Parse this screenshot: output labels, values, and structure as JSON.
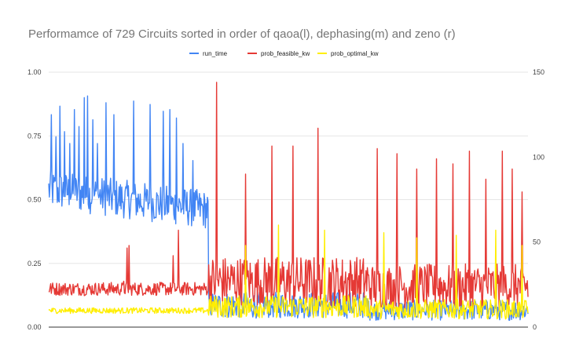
{
  "chart_data": {
    "type": "line",
    "title": "Performamce of 729 Circuits sorted in order of qaoa(l), dephasing(m) and zeno (r)",
    "xlabel": "",
    "ylabel": "",
    "n_points": 729,
    "left_axis": {
      "ylim": [
        0,
        1
      ],
      "ticks": [
        "0.00",
        "0.25",
        "0.50",
        "0.75",
        "1.00"
      ]
    },
    "right_axis": {
      "ylim": [
        0,
        150
      ],
      "ticks": [
        "0",
        "50",
        "100",
        "150"
      ]
    },
    "grid": true,
    "legend_position": "top-center",
    "series": [
      {
        "name": "run_time",
        "color": "#4285f4",
        "axis": "right",
        "segments": [
          {
            "x_range": [
              1,
              243
            ],
            "level": 81,
            "peaks": [
              {
                "x": 5,
                "y": 125
              },
              {
                "x": 12,
                "y": 112
              },
              {
                "x": 18,
                "y": 130
              },
              {
                "x": 25,
                "y": 115
              },
              {
                "x": 33,
                "y": 108
              },
              {
                "x": 40,
                "y": 128
              },
              {
                "x": 47,
                "y": 118
              },
              {
                "x": 55,
                "y": 135
              },
              {
                "x": 60,
                "y": 136
              },
              {
                "x": 68,
                "y": 122
              },
              {
                "x": 75,
                "y": 108
              },
              {
                "x": 88,
                "y": 132
              },
              {
                "x": 100,
                "y": 125
              },
              {
                "x": 130,
                "y": 133
              },
              {
                "x": 155,
                "y": 131
              },
              {
                "x": 175,
                "y": 127
              },
              {
                "x": 185,
                "y": 128
              },
              {
                "x": 195,
                "y": 123
              },
              {
                "x": 205,
                "y": 108
              },
              {
                "x": 220,
                "y": 98
              }
            ]
          },
          {
            "x_range": [
              244,
              486
            ],
            "level": 13,
            "peaks": []
          },
          {
            "x_range": [
              487,
              729
            ],
            "level": 10,
            "peaks": []
          }
        ]
      },
      {
        "name": "prob_feasible_kw",
        "color": "#e53935",
        "axis": "left",
        "segments": [
          {
            "x_range": [
              1,
              243
            ],
            "level": 0.15,
            "peaks": [
              {
                "x": 115,
                "y": 0.18
              },
              {
                "x": 120,
                "y": 0.31
              },
              {
                "x": 123,
                "y": 0.32
              },
              {
                "x": 190,
                "y": 0.28
              },
              {
                "x": 198,
                "y": 0.38
              }
            ]
          },
          {
            "x_range": [
              244,
              486
            ],
            "level": 0.18,
            "peaks": [
              {
                "x": 256,
                "y": 0.96
              },
              {
                "x": 300,
                "y": 0.6
              },
              {
                "x": 340,
                "y": 0.71
              },
              {
                "x": 372,
                "y": 0.71
              },
              {
                "x": 410,
                "y": 0.78
              }
            ]
          },
          {
            "x_range": [
              487,
              729
            ],
            "level": 0.16,
            "peaks": [
              {
                "x": 500,
                "y": 0.7
              },
              {
                "x": 530,
                "y": 0.68
              },
              {
                "x": 560,
                "y": 0.62
              },
              {
                "x": 590,
                "y": 0.66
              },
              {
                "x": 615,
                "y": 0.64
              },
              {
                "x": 640,
                "y": 0.69
              },
              {
                "x": 665,
                "y": 0.58
              },
              {
                "x": 690,
                "y": 0.69
              },
              {
                "x": 705,
                "y": 0.62
              },
              {
                "x": 720,
                "y": 0.53
              }
            ]
          }
        ]
      },
      {
        "name": "prob_optimal_kw",
        "color": "#ffee00",
        "axis": "left",
        "segments": [
          {
            "x_range": [
              1,
              243
            ],
            "level": 0.065,
            "peaks": []
          },
          {
            "x_range": [
              244,
              486
            ],
            "level": 0.08,
            "peaks": [
              {
                "x": 300,
                "y": 0.32
              },
              {
                "x": 350,
                "y": 0.4
              },
              {
                "x": 420,
                "y": 0.38
              }
            ]
          },
          {
            "x_range": [
              487,
              729
            ],
            "level": 0.07,
            "peaks": [
              {
                "x": 510,
                "y": 0.37
              },
              {
                "x": 560,
                "y": 0.35
              },
              {
                "x": 620,
                "y": 0.36
              },
              {
                "x": 680,
                "y": 0.38
              },
              {
                "x": 720,
                "y": 0.32
              }
            ]
          }
        ]
      }
    ]
  }
}
